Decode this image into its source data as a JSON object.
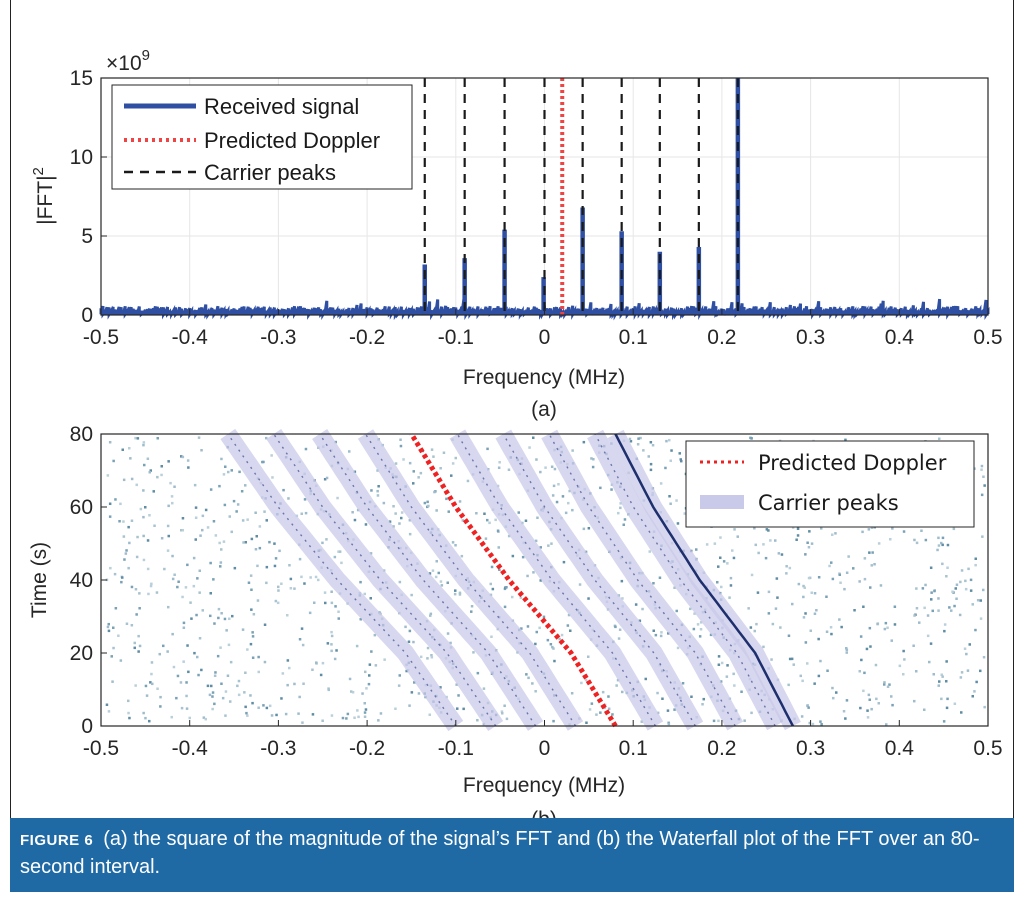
{
  "chart_data": [
    {
      "type": "line",
      "title": "",
      "panel_label": "(a)",
      "xlabel": "Frequency (MHz)",
      "ylabel": "|FFT|",
      "ylabel_sup": "2",
      "y_exponent": "×10",
      "y_exponent_power": "9",
      "xlim": [
        -0.5,
        0.5
      ],
      "ylim": [
        0,
        15
      ],
      "xticks": [
        "-0.5",
        "-0.4",
        "-0.3",
        "-0.2",
        "-0.1",
        "0",
        "0.1",
        "0.2",
        "0.3",
        "0.4",
        "0.5"
      ],
      "yticks": [
        "0",
        "5",
        "10",
        "15"
      ],
      "grid": true,
      "legend_position": "top-left",
      "series": [
        {
          "name": "Received signal",
          "style": "solid",
          "color": "#2f4fa3",
          "noise_floor": 0.45
        },
        {
          "name": "Predicted Doppler",
          "style": "dotted",
          "color": "#ee4444",
          "x": [
            0.02
          ]
        },
        {
          "name": "Carrier peaks",
          "style": "dashed",
          "color": "#1a1a1a",
          "x": [
            -0.135,
            -0.09,
            -0.045,
            0,
            0.043,
            0.087,
            0.13,
            0.174,
            0.218
          ]
        }
      ],
      "peaks": [
        {
          "x": -0.135,
          "y": 3.2
        },
        {
          "x": -0.09,
          "y": 3.6
        },
        {
          "x": -0.045,
          "y": 5.4
        },
        {
          "x": -0.001,
          "y": 2.4
        },
        {
          "x": 0.043,
          "y": 6.8
        },
        {
          "x": 0.087,
          "y": 5.3
        },
        {
          "x": 0.13,
          "y": 4.0
        },
        {
          "x": 0.174,
          "y": 4.3
        },
        {
          "x": 0.218,
          "y": 15.0
        }
      ]
    },
    {
      "type": "heatmap",
      "title": "",
      "panel_label": "(b)",
      "xlabel": "Frequency (MHz)",
      "ylabel": "Time (s)",
      "xlim": [
        -0.5,
        0.5
      ],
      "ylim": [
        0,
        80
      ],
      "xticks": [
        "-0.5",
        "-0.4",
        "-0.3",
        "-0.2",
        "-0.1",
        "0",
        "0.1",
        "0.2",
        "0.3",
        "0.4",
        "0.5"
      ],
      "yticks": [
        "0",
        "20",
        "40",
        "60",
        "80"
      ],
      "legend_position": "top-right",
      "legend": [
        {
          "name": "Predicted Doppler",
          "style": "dotted",
          "color": "#ee2222"
        },
        {
          "name": "Carrier peaks",
          "style": "band",
          "color": "#c9c9ea"
        }
      ],
      "doppler_curve": {
        "t": [
          0,
          20,
          40,
          60,
          80
        ],
        "f": [
          0.08,
          0.03,
          -0.04,
          -0.1,
          -0.15
        ]
      },
      "carrier_offsets": [
        -0.18,
        -0.135,
        -0.09,
        -0.045,
        0.045,
        0.09,
        0.135,
        0.18,
        0.2
      ]
    }
  ],
  "caption": {
    "label": "FIGURE 6",
    "text": "(a) the square of the magnitude of the signal’s FFT and (b) the Waterfall plot of the FFT over an 80-second interval."
  }
}
